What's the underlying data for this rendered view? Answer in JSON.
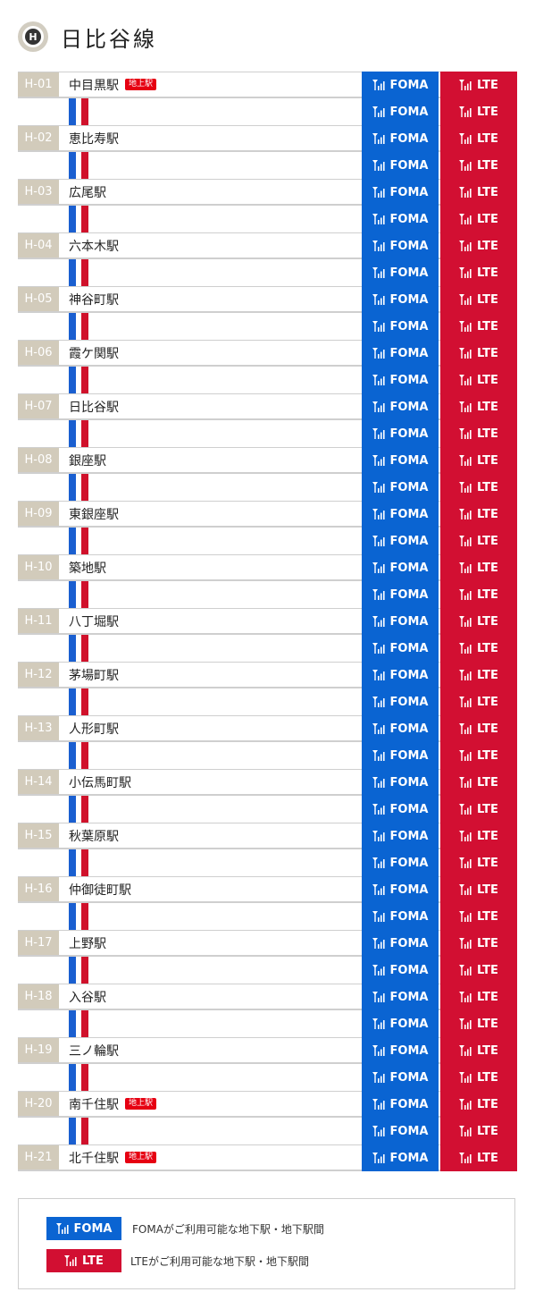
{
  "header": {
    "badge_letter": "H",
    "title": "日比谷線"
  },
  "badges": {
    "foma_label": "FOMA",
    "lte_label": "LTE",
    "above_ground_label": "地上駅"
  },
  "colors": {
    "foma": "#0a64d2",
    "lte": "#d20f32",
    "code_bg": "#d2cbbb",
    "above_ground": "#e60012"
  },
  "icons": {
    "signal": "antenna-signal-icon"
  },
  "stations": [
    {
      "code": "H-01",
      "name": "中目黒駅",
      "above_ground": true
    },
    {
      "code": "H-02",
      "name": "恵比寿駅",
      "above_ground": false
    },
    {
      "code": "H-03",
      "name": "広尾駅",
      "above_ground": false
    },
    {
      "code": "H-04",
      "name": "六本木駅",
      "above_ground": false
    },
    {
      "code": "H-05",
      "name": "神谷町駅",
      "above_ground": false
    },
    {
      "code": "H-06",
      "name": "霞ケ関駅",
      "above_ground": false
    },
    {
      "code": "H-07",
      "name": "日比谷駅",
      "above_ground": false
    },
    {
      "code": "H-08",
      "name": "銀座駅",
      "above_ground": false
    },
    {
      "code": "H-09",
      "name": "東銀座駅",
      "above_ground": false
    },
    {
      "code": "H-10",
      "name": "築地駅",
      "above_ground": false
    },
    {
      "code": "H-11",
      "name": "八丁堀駅",
      "above_ground": false
    },
    {
      "code": "H-12",
      "name": "茅場町駅",
      "above_ground": false
    },
    {
      "code": "H-13",
      "name": "人形町駅",
      "above_ground": false
    },
    {
      "code": "H-14",
      "name": "小伝馬町駅",
      "above_ground": false
    },
    {
      "code": "H-15",
      "name": "秋葉原駅",
      "above_ground": false
    },
    {
      "code": "H-16",
      "name": "仲御徒町駅",
      "above_ground": false
    },
    {
      "code": "H-17",
      "name": "上野駅",
      "above_ground": false
    },
    {
      "code": "H-18",
      "name": "入谷駅",
      "above_ground": false
    },
    {
      "code": "H-19",
      "name": "三ノ輪駅",
      "above_ground": false
    },
    {
      "code": "H-20",
      "name": "南千住駅",
      "above_ground": true
    },
    {
      "code": "H-21",
      "name": "北千住駅",
      "above_ground": true
    }
  ],
  "legend": {
    "foma_text": "FOMAがご利用可能な地下駅・地下駅間",
    "lte_text": "LTEがご利用可能な地下駅・地下駅間"
  }
}
